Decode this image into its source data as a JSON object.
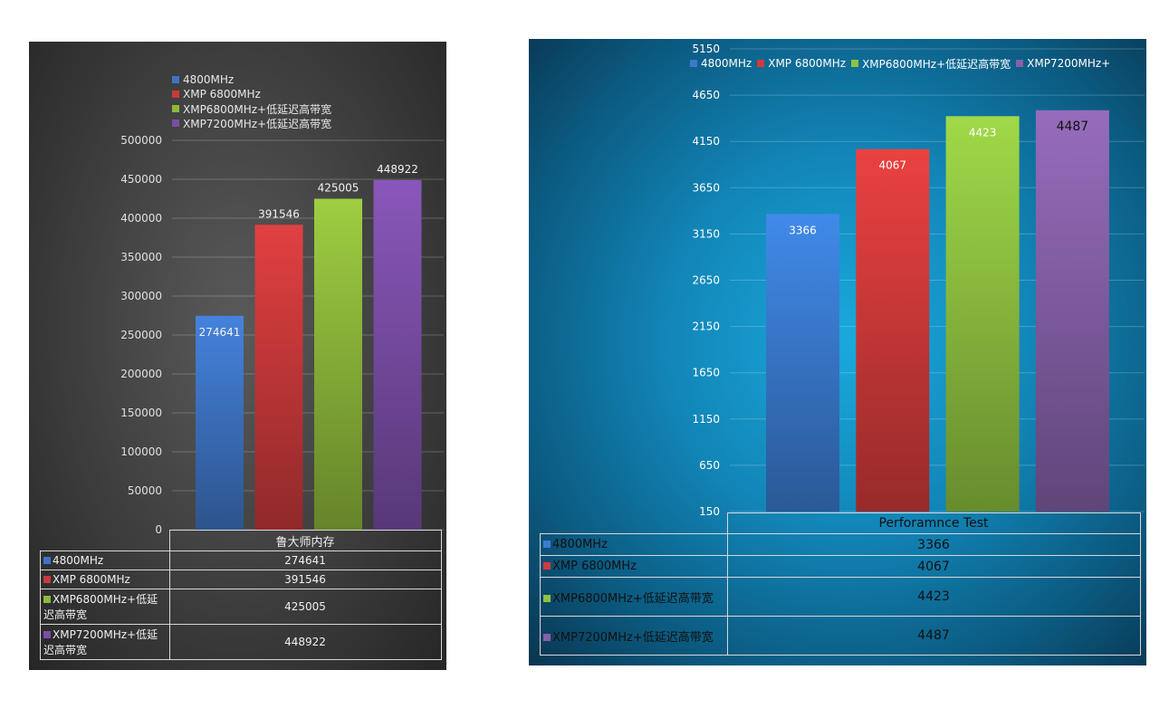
{
  "chart_data": [
    {
      "type": "bar",
      "categories": [
        "鲁大师内存"
      ],
      "series": [
        {
          "name": "4800MHz",
          "values": [
            274641
          ],
          "color": "#3e74c4"
        },
        {
          "name": "XMP 6800MHz",
          "values": [
            391546
          ],
          "color": "#c9393a"
        },
        {
          "name": "XMP6800MHz+低延迟高带宽",
          "values": [
            425005
          ],
          "color": "#8db83a"
        },
        {
          "name": "XMP7200MHz+低延迟高带宽",
          "values": [
            448922
          ],
          "color": "#7a4ea6"
        }
      ],
      "y_ticks": [
        "500000",
        "450000",
        "400000",
        "350000",
        "300000",
        "250000",
        "200000",
        "150000",
        "100000",
        "50000",
        "0"
      ],
      "ylim": [
        0,
        500000
      ],
      "table_rows": [
        {
          "label": "4800MHz",
          "value": "274641"
        },
        {
          "label": "XMP 6800MHz",
          "value": "391546"
        },
        {
          "label": "XMP6800MHz+低延迟高带宽",
          "value": "425005"
        },
        {
          "label": "XMP7200MHz+低延迟高带宽",
          "value": "448922"
        }
      ],
      "data_labels": [
        "274641",
        "391546",
        "425005",
        "448922"
      ],
      "grid": true,
      "legend_position": "top"
    },
    {
      "type": "bar",
      "categories": [
        "Perforamnce Test"
      ],
      "series": [
        {
          "name": "4800MHz",
          "values": [
            3366
          ],
          "color": "#3a7bd0"
        },
        {
          "name": "XMP 6800MHz",
          "values": [
            4067
          ],
          "color": "#d23a3a"
        },
        {
          "name": "XMP6800MHz+低延迟高带宽",
          "values": [
            4423
          ],
          "color": "#8fc240"
        },
        {
          "name": "XMP7200MHz+",
          "values": [
            4487
          ],
          "color": "#8660a8"
        }
      ],
      "y_ticks": [
        "5150",
        "4650",
        "4150",
        "3650",
        "3150",
        "2650",
        "2150",
        "1650",
        "1150",
        "650",
        "150"
      ],
      "ylim": [
        150,
        5150
      ],
      "table_rows": [
        {
          "label": "4800MHz",
          "value": "3366"
        },
        {
          "label": "XMP 6800MHz",
          "value": "4067"
        },
        {
          "label": "XMP6800MHz+低延迟高带宽",
          "value": "4423"
        },
        {
          "label": "XMP7200MHz+低延迟高带宽",
          "value": "4487"
        }
      ],
      "data_labels": [
        "3366",
        "4067",
        "4423",
        "4487"
      ],
      "grid": true,
      "legend_position": "top"
    }
  ]
}
